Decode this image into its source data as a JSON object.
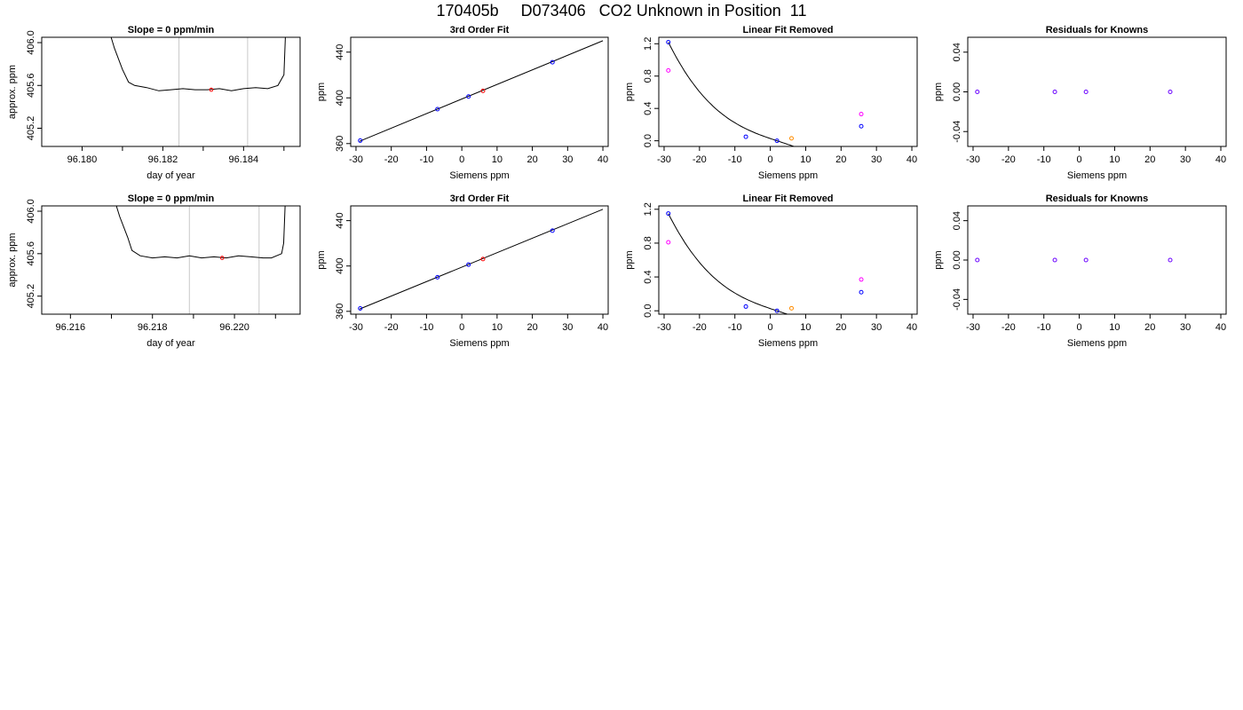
{
  "page_title": "170405b     D073406   CO2 Unknown in Position  11",
  "colors": {
    "axis": "#000000",
    "line": "#000000",
    "vline": "#c8c8c8",
    "known": "#0000ff",
    "unknown": "#ff0000",
    "unknown_lin": "#ff8c00",
    "measured": "#ff00ff",
    "resid": "#6a00ff"
  },
  "chart_data": [
    {
      "type": "line",
      "title": "Slope =  0  ppm/min",
      "xlabel": "day of year",
      "ylabel": "approx. ppm",
      "xlim": [
        96.179,
        96.1854
      ],
      "ylim": [
        405.03,
        406.05
      ],
      "xticks": [
        96.18,
        96.182,
        96.184
      ],
      "xtick_labels": [
        "96.180",
        "96.182",
        "96.184"
      ],
      "xticks_minor": [
        96.181,
        96.183,
        96.185
      ],
      "yticks": [
        405.2,
        405.6,
        406.0
      ],
      "ytick_labels": [
        "405.2",
        "405.6",
        "406.0"
      ],
      "vlines": [
        96.1824,
        96.1841
      ],
      "trace": [
        [
          96.1806,
          406.2
        ],
        [
          96.1808,
          405.95
        ],
        [
          96.181,
          405.75
        ],
        [
          96.18115,
          405.63
        ],
        [
          96.1813,
          405.6
        ],
        [
          96.1816,
          405.58
        ],
        [
          96.1819,
          405.55
        ],
        [
          96.1822,
          405.56
        ],
        [
          96.1825,
          405.57
        ],
        [
          96.1828,
          405.56
        ],
        [
          96.1831,
          405.56
        ],
        [
          96.1834,
          405.57
        ],
        [
          96.1837,
          405.55
        ],
        [
          96.184,
          405.57
        ],
        [
          96.1843,
          405.58
        ],
        [
          96.1846,
          405.57
        ],
        [
          96.18485,
          405.6
        ],
        [
          96.185,
          405.7
        ],
        [
          96.18505,
          406.2
        ]
      ],
      "marker": [
        96.1832,
        405.56
      ]
    },
    {
      "type": "scatter",
      "title": "3rd Order Fit",
      "xlabel": "Siemens ppm",
      "ylabel": "ppm",
      "xlim": [
        -31.5,
        41.5
      ],
      "ylim": [
        357.5,
        453
      ],
      "xticks": [
        -30,
        -20,
        -10,
        0,
        10,
        20,
        30,
        40
      ],
      "xtick_labels": [
        "-30",
        "-20",
        "-10",
        "0",
        "10",
        "20",
        "30",
        "40"
      ],
      "yticks": [
        360,
        400,
        440
      ],
      "ytick_labels": [
        "360",
        "400",
        "440"
      ],
      "fit_line": [
        [
          -29,
          362
        ],
        [
          40,
          450
        ]
      ],
      "knowns": [
        [
          -28.8,
          362.6
        ],
        [
          -6.9,
          390.1
        ],
        [
          1.9,
          401.2
        ],
        [
          25.7,
          431.2
        ]
      ],
      "unknowns": [
        [
          6.0,
          406.1
        ]
      ]
    },
    {
      "type": "scatter",
      "title": "Linear Fit Removed",
      "xlabel": "Siemens ppm",
      "ylabel": "ppm",
      "xlim": [
        -31.5,
        41.5
      ],
      "ylim": [
        -0.07,
        1.28
      ],
      "xticks": [
        -30,
        -20,
        -10,
        0,
        10,
        20,
        30,
        40
      ],
      "xtick_labels": [
        "-30",
        "-20",
        "-10",
        "0",
        "10",
        "20",
        "30",
        "40"
      ],
      "yticks": [
        0.0,
        0.4,
        0.8,
        1.2
      ],
      "ytick_labels": [
        "0.0",
        "0.4",
        "0.8",
        "1.2"
      ],
      "cubic": [
        1e-05,
        -8e-05,
        0.006,
        0.0
      ],
      "curve_range": [
        -28.8,
        40
      ],
      "knowns": [
        [
          -28.8,
          1.22
        ],
        [
          -6.9,
          0.05
        ],
        [
          1.9,
          0.0
        ],
        [
          25.7,
          0.18
        ]
      ],
      "measured": [
        [
          -28.8,
          0.87
        ],
        [
          25.7,
          0.33
        ]
      ],
      "unknowns": [
        [
          6.0,
          0.03
        ]
      ]
    },
    {
      "type": "scatter",
      "title": "Residuals for Knowns",
      "xlabel": "Siemens ppm",
      "ylabel": "ppm",
      "xlim": [
        -31.5,
        41.5
      ],
      "ylim": [
        -0.055,
        0.055
      ],
      "xticks": [
        -30,
        -20,
        -10,
        0,
        10,
        20,
        30,
        40
      ],
      "xtick_labels": [
        "-30",
        "-20",
        "-10",
        "0",
        "10",
        "20",
        "30",
        "40"
      ],
      "yticks": [
        -0.04,
        0.0,
        0.04
      ],
      "ytick_labels": [
        "-0.04",
        "0.00",
        "0.04"
      ],
      "residuals": [
        [
          -28.8,
          0.0
        ],
        [
          -6.9,
          0.0
        ],
        [
          1.9,
          0.0
        ],
        [
          25.7,
          0.0
        ]
      ]
    },
    {
      "type": "line",
      "title": "Slope =  0  ppm/min",
      "xlabel": "day of year",
      "ylabel": "approx. ppm",
      "xlim": [
        96.2153,
        96.2216
      ],
      "ylim": [
        405.03,
        406.05
      ],
      "xticks": [
        96.216,
        96.218,
        96.22
      ],
      "xtick_labels": [
        "96.216",
        "96.218",
        "96.220"
      ],
      "xticks_minor": [
        96.217,
        96.219,
        96.221
      ],
      "yticks": [
        405.2,
        405.6,
        406.0
      ],
      "ytick_labels": [
        "405.2",
        "405.6",
        "406.0"
      ],
      "vlines": [
        96.2189,
        96.2206
      ],
      "trace": [
        [
          96.217,
          406.2
        ],
        [
          96.2172,
          405.95
        ],
        [
          96.2174,
          405.75
        ],
        [
          96.2175,
          405.63
        ],
        [
          96.2177,
          405.58
        ],
        [
          96.218,
          405.56
        ],
        [
          96.2183,
          405.57
        ],
        [
          96.2186,
          405.56
        ],
        [
          96.2189,
          405.58
        ],
        [
          96.2192,
          405.56
        ],
        [
          96.2195,
          405.57
        ],
        [
          96.2198,
          405.56
        ],
        [
          96.2201,
          405.58
        ],
        [
          96.2204,
          405.57
        ],
        [
          96.2207,
          405.56
        ],
        [
          96.2209,
          405.56
        ],
        [
          96.22115,
          405.6
        ],
        [
          96.2212,
          405.7
        ],
        [
          96.22125,
          406.2
        ]
      ],
      "marker": [
        96.2197,
        405.56
      ]
    },
    {
      "type": "scatter",
      "title": "3rd Order Fit",
      "xlabel": "Siemens ppm",
      "ylabel": "ppm",
      "xlim": [
        -31.5,
        41.5
      ],
      "ylim": [
        357.5,
        453
      ],
      "xticks": [
        -30,
        -20,
        -10,
        0,
        10,
        20,
        30,
        40
      ],
      "xtick_labels": [
        "-30",
        "-20",
        "-10",
        "0",
        "10",
        "20",
        "30",
        "40"
      ],
      "yticks": [
        360,
        400,
        440
      ],
      "ytick_labels": [
        "360",
        "400",
        "440"
      ],
      "fit_line": [
        [
          -29,
          362
        ],
        [
          40,
          450
        ]
      ],
      "knowns": [
        [
          -28.8,
          362.6
        ],
        [
          -6.9,
          390.1
        ],
        [
          1.9,
          401.2
        ],
        [
          25.7,
          431.2
        ]
      ],
      "unknowns": [
        [
          6.0,
          406.1
        ]
      ]
    },
    {
      "type": "scatter",
      "title": "Linear Fit Removed",
      "xlabel": "Siemens ppm",
      "ylabel": "ppm",
      "xlim": [
        -31.5,
        41.5
      ],
      "ylim": [
        -0.04,
        1.24
      ],
      "xticks": [
        -30,
        -20,
        -10,
        0,
        10,
        20,
        30,
        40
      ],
      "xtick_labels": [
        "-30",
        "-20",
        "-10",
        "0",
        "10",
        "20",
        "30",
        "40"
      ],
      "yticks": [
        0.0,
        0.4,
        0.8,
        1.2
      ],
      "ytick_labels": [
        "0.0",
        "0.4",
        "0.8",
        "1.2"
      ],
      "cubic": [
        1e-05,
        -8e-05,
        0.006,
        0.0
      ],
      "curve_range": [
        -28.8,
        40
      ],
      "knowns": [
        [
          -28.8,
          1.15
        ],
        [
          -6.9,
          0.05
        ],
        [
          1.9,
          0.0
        ],
        [
          25.7,
          0.22
        ]
      ],
      "measured": [
        [
          -28.8,
          0.81
        ],
        [
          25.7,
          0.37
        ]
      ],
      "unknowns": [
        [
          6.0,
          0.03
        ]
      ]
    },
    {
      "type": "scatter",
      "title": "Residuals for Knowns",
      "xlabel": "Siemens ppm",
      "ylabel": "ppm",
      "xlim": [
        -31.5,
        41.5
      ],
      "ylim": [
        -0.055,
        0.055
      ],
      "xticks": [
        -30,
        -20,
        -10,
        0,
        10,
        20,
        30,
        40
      ],
      "xtick_labels": [
        "-30",
        "-20",
        "-10",
        "0",
        "10",
        "20",
        "30",
        "40"
      ],
      "yticks": [
        -0.04,
        0.0,
        0.04
      ],
      "ytick_labels": [
        "-0.04",
        "0.00",
        "0.04"
      ],
      "residuals": [
        [
          -28.8,
          0.0
        ],
        [
          -6.9,
          0.0
        ],
        [
          1.9,
          0.0
        ],
        [
          25.7,
          0.0
        ]
      ]
    }
  ]
}
